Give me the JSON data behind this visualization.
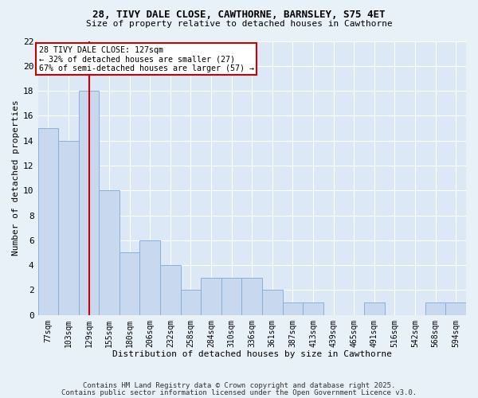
{
  "title1": "28, TIVY DALE CLOSE, CAWTHORNE, BARNSLEY, S75 4ET",
  "title2": "Size of property relative to detached houses in Cawthorne",
  "xlabel": "Distribution of detached houses by size in Cawthorne",
  "ylabel": "Number of detached properties",
  "bins": [
    "77sqm",
    "103sqm",
    "129sqm",
    "155sqm",
    "180sqm",
    "206sqm",
    "232sqm",
    "258sqm",
    "284sqm",
    "310sqm",
    "336sqm",
    "361sqm",
    "387sqm",
    "413sqm",
    "439sqm",
    "465sqm",
    "491sqm",
    "516sqm",
    "542sqm",
    "568sqm",
    "594sqm"
  ],
  "values": [
    15,
    14,
    18,
    10,
    5,
    6,
    4,
    2,
    3,
    3,
    3,
    2,
    1,
    1,
    0,
    0,
    1,
    0,
    0,
    1,
    1
  ],
  "bar_color": "#c8d8ee",
  "bar_edge_color": "#8ab0d8",
  "red_line_index": 2,
  "annotation_line1": "28 TIVY DALE CLOSE: 127sqm",
  "annotation_line2": "← 32% of detached houses are smaller (27)",
  "annotation_line3": "67% of semi-detached houses are larger (57) →",
  "annotation_box_color": "#ffffff",
  "annotation_box_edge_color": "#cc0000",
  "red_line_color": "#cc0000",
  "ylim": [
    0,
    22
  ],
  "yticks": [
    0,
    2,
    4,
    6,
    8,
    10,
    12,
    14,
    16,
    18,
    20,
    22
  ],
  "bg_color": "#dce8f5",
  "fig_bg_color": "#e8f0f8",
  "footer1": "Contains HM Land Registry data © Crown copyright and database right 2025.",
  "footer2": "Contains public sector information licensed under the Open Government Licence v3.0."
}
